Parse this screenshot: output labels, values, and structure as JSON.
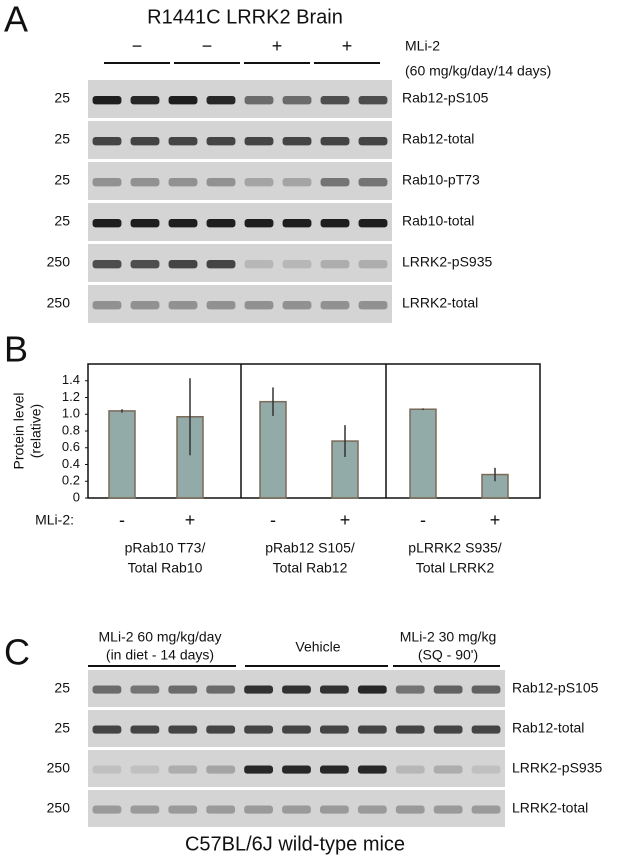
{
  "panel_a": {
    "letter": "A",
    "title": "R1441C LRRK2 Brain",
    "treatments": [
      "−",
      "−",
      "+",
      "+"
    ],
    "treatment_name": "MLi-2",
    "treatment_dose": "(60 mg/kg/day/14 days)",
    "rows": [
      {
        "mw": "25",
        "label": "Rab12-pS105"
      },
      {
        "mw": "25",
        "label": "Rab12-total"
      },
      {
        "mw": "25",
        "label": "Rab10-pT73"
      },
      {
        "mw": "25",
        "label": "Rab10-total"
      },
      {
        "mw": "250",
        "label": "LRRK2-pS935"
      },
      {
        "mw": "250",
        "label": "LRRK2-total"
      }
    ]
  },
  "chart_data": {
    "type": "grouped-bar",
    "letter": "B",
    "y_label": [
      "Protein level",
      "(relative)"
    ],
    "x_prefix": "MLi-2:",
    "ylim": [
      0,
      1.6
    ],
    "yticks": [
      0,
      0.2,
      0.4,
      0.6,
      0.8,
      {
        "value": 1,
        "label": "1.0"
      },
      1.2,
      1.4
    ],
    "color": "#93aba8",
    "edge": "#7a6a58",
    "groups": [
      {
        "label": [
          "pRab10 T73/",
          "Total Rab10"
        ],
        "categories": [
          "-",
          "+"
        ],
        "values": [
          1.04,
          0.97
        ],
        "errors": [
          0.02,
          0.46
        ]
      },
      {
        "label": [
          "pRab12 S105/",
          "Total Rab12"
        ],
        "categories": [
          "-",
          "+"
        ],
        "values": [
          1.15,
          0.68
        ],
        "errors": [
          0.17,
          0.19
        ]
      },
      {
        "label": [
          "pLRRK2 S935/",
          "Total LRRK2"
        ],
        "categories": [
          "-",
          "+"
        ],
        "values": [
          1.06,
          0.28
        ],
        "errors": [
          0.01,
          0.08
        ]
      }
    ]
  },
  "panel_c": {
    "letter": "C",
    "headers": [
      {
        "lines": [
          "MLi-2 60 mg/kg/day",
          "(in diet - 14 days)"
        ]
      },
      {
        "lines": [
          "Vehicle"
        ]
      },
      {
        "lines": [
          "MLi-2 30 mg/kg",
          "(SQ - 90')"
        ]
      }
    ],
    "rows": [
      {
        "mw": "25",
        "label": "Rab12-pS105"
      },
      {
        "mw": "25",
        "label": "Rab12-total"
      },
      {
        "mw": "250",
        "label": "LRRK2-pS935"
      },
      {
        "mw": "250",
        "label": "LRRK2-total"
      }
    ],
    "footer": "C57BL/6J wild-type mice"
  }
}
